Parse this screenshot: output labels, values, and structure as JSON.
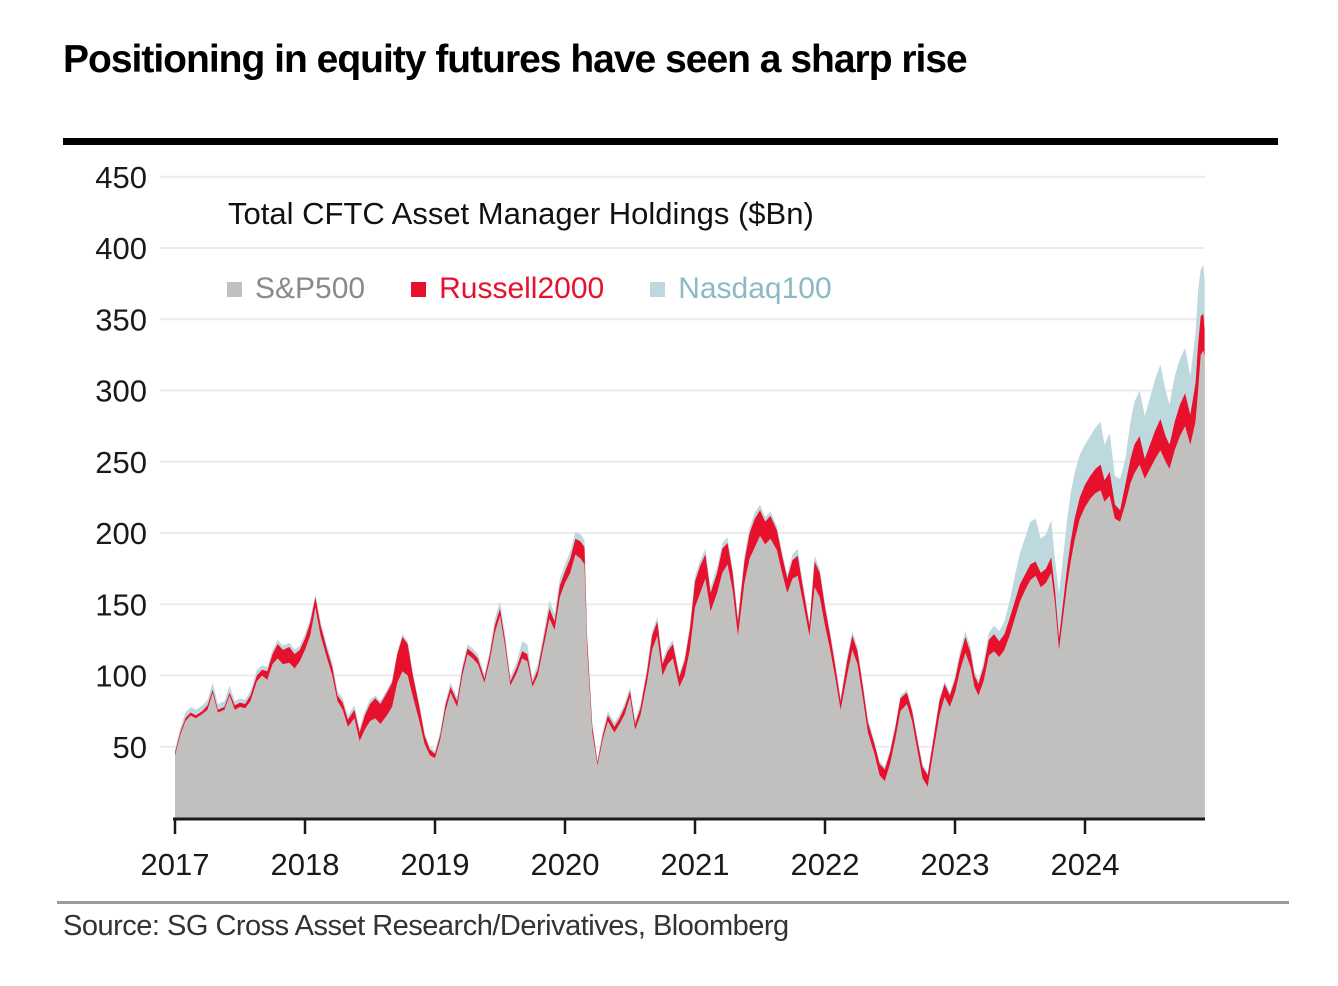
{
  "header": {
    "title": "Positioning in equity futures have seen a sharp rise"
  },
  "chart": {
    "subtitle": "Total CFTC Asset Manager Holdings ($Bn)",
    "legend": [
      {
        "label": "S&P500",
        "swatch_color": "#c2bfbf",
        "text_color": "#8a8a8a"
      },
      {
        "label": "Russell2000",
        "swatch_color": "#e8112d",
        "text_color": "#e8112d"
      },
      {
        "label": "Nasdaq100",
        "swatch_color": "#bed9de",
        "text_color": "#8db9c5"
      }
    ]
  },
  "footer": {
    "source": "Source: SG Cross Asset Research/Derivatives, Bloomberg"
  },
  "colors": {
    "sp500_area": "#c2bfbf",
    "russell2000_area": "#e8112d",
    "nasdaq100_area": "#bed9de",
    "gridline": "#ebebeb",
    "axis": "#1a1a1a",
    "tick_label": "#1a1a1a"
  },
  "chart_data": {
    "type": "area",
    "stacked": true,
    "title": "Total CFTC Asset Manager Holdings ($Bn)",
    "series_names": [
      "S&P500",
      "Russell2000",
      "Nasdaq100"
    ],
    "x_unit": "decimal_year",
    "x_range": [
      2017.0,
      2024.92
    ],
    "ylim": [
      0,
      450
    ],
    "y_ticks": [
      450,
      400,
      350,
      300,
      250,
      200,
      150,
      100,
      50
    ],
    "x_ticks": [
      "2017",
      "2018",
      "2019",
      "2020",
      "2021",
      "2022",
      "2023",
      "2024"
    ],
    "grid": "horizontal",
    "legend_position": "top-left-inside",
    "columns": [
      "year",
      "sp500",
      "russell2000_band",
      "nasdaq100_band"
    ],
    "points": [
      [
        2017.0,
        44,
        2,
        2
      ],
      [
        2017.04,
        58,
        2,
        3
      ],
      [
        2017.08,
        68,
        2,
        4
      ],
      [
        2017.12,
        72,
        2,
        4
      ],
      [
        2017.16,
        70,
        2,
        4
      ],
      [
        2017.21,
        73,
        2,
        4
      ],
      [
        2017.25,
        76,
        3,
        4
      ],
      [
        2017.29,
        88,
        2,
        5
      ],
      [
        2017.33,
        74,
        2,
        4
      ],
      [
        2017.38,
        76,
        2,
        4
      ],
      [
        2017.42,
        86,
        2,
        5
      ],
      [
        2017.46,
        76,
        3,
        3
      ],
      [
        2017.5,
        78,
        3,
        3
      ],
      [
        2017.54,
        77,
        3,
        3
      ],
      [
        2017.58,
        82,
        4,
        3
      ],
      [
        2017.63,
        96,
        4,
        4
      ],
      [
        2017.67,
        100,
        4,
        3
      ],
      [
        2017.71,
        97,
        6,
        3
      ],
      [
        2017.75,
        108,
        7,
        3
      ],
      [
        2017.79,
        112,
        10,
        3
      ],
      [
        2017.83,
        108,
        10,
        3
      ],
      [
        2017.88,
        109,
        11,
        3
      ],
      [
        2017.92,
        105,
        10,
        3
      ],
      [
        2017.96,
        110,
        8,
        3
      ],
      [
        2018.0,
        118,
        8,
        3
      ],
      [
        2018.04,
        128,
        9,
        3
      ],
      [
        2018.08,
        148,
        7,
        2
      ],
      [
        2018.12,
        128,
        7,
        3
      ],
      [
        2018.17,
        112,
        6,
        3
      ],
      [
        2018.21,
        100,
        6,
        3
      ],
      [
        2018.25,
        82,
        4,
        3
      ],
      [
        2018.29,
        76,
        5,
        3
      ],
      [
        2018.33,
        64,
        5,
        3
      ],
      [
        2018.38,
        70,
        6,
        3
      ],
      [
        2018.42,
        54,
        6,
        3
      ],
      [
        2018.46,
        62,
        10,
        3
      ],
      [
        2018.5,
        68,
        12,
        3
      ],
      [
        2018.54,
        70,
        14,
        2
      ],
      [
        2018.58,
        66,
        14,
        2
      ],
      [
        2018.63,
        72,
        16,
        2
      ],
      [
        2018.67,
        78,
        17,
        2
      ],
      [
        2018.71,
        95,
        20,
        2
      ],
      [
        2018.75,
        103,
        24,
        2
      ],
      [
        2018.79,
        100,
        22,
        2
      ],
      [
        2018.83,
        85,
        15,
        2
      ],
      [
        2018.88,
        68,
        10,
        2
      ],
      [
        2018.92,
        52,
        6,
        2
      ],
      [
        2018.96,
        44,
        4,
        2
      ],
      [
        2019.0,
        42,
        3,
        2
      ],
      [
        2019.04,
        55,
        3,
        3
      ],
      [
        2019.08,
        75,
        4,
        3
      ],
      [
        2019.12,
        88,
        4,
        3
      ],
      [
        2019.17,
        78,
        4,
        3
      ],
      [
        2019.21,
        100,
        4,
        3
      ],
      [
        2019.25,
        115,
        4,
        3
      ],
      [
        2019.29,
        112,
        4,
        3
      ],
      [
        2019.33,
        108,
        4,
        3
      ],
      [
        2019.38,
        95,
        3,
        3
      ],
      [
        2019.42,
        110,
        4,
        3
      ],
      [
        2019.46,
        130,
        5,
        5
      ],
      [
        2019.5,
        142,
        5,
        5
      ],
      [
        2019.54,
        120,
        4,
        4
      ],
      [
        2019.58,
        93,
        3,
        3
      ],
      [
        2019.63,
        102,
        4,
        4
      ],
      [
        2019.67,
        112,
        5,
        7
      ],
      [
        2019.71,
        110,
        5,
        7
      ],
      [
        2019.75,
        92,
        3,
        3
      ],
      [
        2019.79,
        100,
        4,
        4
      ],
      [
        2019.83,
        118,
        5,
        4
      ],
      [
        2019.88,
        140,
        7,
        6
      ],
      [
        2019.92,
        132,
        6,
        5
      ],
      [
        2019.96,
        155,
        8,
        5
      ],
      [
        2020.0,
        165,
        8,
        5
      ],
      [
        2020.04,
        172,
        10,
        5
      ],
      [
        2020.08,
        185,
        11,
        5
      ],
      [
        2020.12,
        182,
        12,
        5
      ],
      [
        2020.15,
        178,
        12,
        5
      ],
      [
        2020.17,
        120,
        6,
        4
      ],
      [
        2020.21,
        60,
        4,
        3
      ],
      [
        2020.25,
        37,
        2,
        2
      ],
      [
        2020.29,
        55,
        3,
        3
      ],
      [
        2020.33,
        68,
        4,
        3
      ],
      [
        2020.38,
        60,
        4,
        3
      ],
      [
        2020.42,
        66,
        4,
        3
      ],
      [
        2020.46,
        73,
        5,
        3
      ],
      [
        2020.5,
        85,
        4,
        3
      ],
      [
        2020.54,
        62,
        4,
        3
      ],
      [
        2020.58,
        72,
        5,
        3
      ],
      [
        2020.63,
        95,
        7,
        3
      ],
      [
        2020.67,
        118,
        10,
        3
      ],
      [
        2020.71,
        128,
        10,
        3
      ],
      [
        2020.75,
        100,
        8,
        3
      ],
      [
        2020.79,
        108,
        9,
        3
      ],
      [
        2020.83,
        112,
        10,
        3
      ],
      [
        2020.88,
        92,
        7,
        3
      ],
      [
        2020.92,
        100,
        10,
        3
      ],
      [
        2020.96,
        118,
        14,
        3
      ],
      [
        2021.0,
        148,
        18,
        4
      ],
      [
        2021.04,
        158,
        19,
        4
      ],
      [
        2021.08,
        168,
        17,
        4
      ],
      [
        2021.12,
        145,
        13,
        4
      ],
      [
        2021.17,
        158,
        14,
        4
      ],
      [
        2021.21,
        172,
        17,
        4
      ],
      [
        2021.25,
        178,
        15,
        4
      ],
      [
        2021.29,
        160,
        12,
        3
      ],
      [
        2021.33,
        128,
        10,
        3
      ],
      [
        2021.38,
        165,
        15,
        4
      ],
      [
        2021.42,
        182,
        18,
        4
      ],
      [
        2021.46,
        190,
        20,
        4
      ],
      [
        2021.5,
        198,
        18,
        4
      ],
      [
        2021.54,
        192,
        16,
        3
      ],
      [
        2021.58,
        196,
        16,
        3
      ],
      [
        2021.63,
        188,
        14,
        3
      ],
      [
        2021.67,
        172,
        12,
        3
      ],
      [
        2021.71,
        158,
        10,
        3
      ],
      [
        2021.75,
        168,
        13,
        4
      ],
      [
        2021.79,
        170,
        14,
        5
      ],
      [
        2021.83,
        152,
        10,
        3
      ],
      [
        2021.88,
        128,
        7,
        3
      ],
      [
        2021.92,
        162,
        18,
        4
      ],
      [
        2021.96,
        155,
        17,
        3
      ],
      [
        2022.0,
        135,
        13,
        3
      ],
      [
        2022.04,
        118,
        10,
        3
      ],
      [
        2022.08,
        98,
        8,
        3
      ],
      [
        2022.12,
        76,
        6,
        3
      ],
      [
        2022.17,
        100,
        10,
        3
      ],
      [
        2022.21,
        118,
        10,
        3
      ],
      [
        2022.25,
        108,
        9,
        3
      ],
      [
        2022.29,
        85,
        8,
        3
      ],
      [
        2022.33,
        60,
        7,
        3
      ],
      [
        2022.38,
        45,
        7,
        2
      ],
      [
        2022.42,
        30,
        8,
        2
      ],
      [
        2022.46,
        26,
        8,
        2
      ],
      [
        2022.5,
        38,
        8,
        2
      ],
      [
        2022.54,
        55,
        8,
        2
      ],
      [
        2022.58,
        75,
        9,
        2
      ],
      [
        2022.63,
        80,
        8,
        2
      ],
      [
        2022.67,
        68,
        7,
        2
      ],
      [
        2022.71,
        48,
        7,
        2
      ],
      [
        2022.75,
        28,
        8,
        2
      ],
      [
        2022.79,
        22,
        8,
        2
      ],
      [
        2022.83,
        45,
        8,
        2
      ],
      [
        2022.88,
        72,
        10,
        2
      ],
      [
        2022.92,
        85,
        9,
        2
      ],
      [
        2022.96,
        78,
        8,
        2
      ],
      [
        2023.0,
        88,
        9,
        3
      ],
      [
        2023.04,
        104,
        10,
        4
      ],
      [
        2023.08,
        116,
        11,
        4
      ],
      [
        2023.12,
        106,
        10,
        4
      ],
      [
        2023.15,
        92,
        8,
        3
      ],
      [
        2023.18,
        86,
        8,
        3
      ],
      [
        2023.22,
        96,
        10,
        4
      ],
      [
        2023.26,
        114,
        11,
        5
      ],
      [
        2023.3,
        117,
        12,
        6
      ],
      [
        2023.34,
        113,
        11,
        7
      ],
      [
        2023.38,
        118,
        11,
        9
      ],
      [
        2023.42,
        128,
        12,
        12
      ],
      [
        2023.46,
        140,
        12,
        18
      ],
      [
        2023.5,
        152,
        12,
        22
      ],
      [
        2023.54,
        160,
        11,
        26
      ],
      [
        2023.58,
        167,
        11,
        30
      ],
      [
        2023.62,
        170,
        10,
        30
      ],
      [
        2023.66,
        162,
        10,
        24
      ],
      [
        2023.7,
        165,
        10,
        24
      ],
      [
        2023.74,
        172,
        11,
        26
      ],
      [
        2023.77,
        150,
        9,
        22
      ],
      [
        2023.8,
        118,
        8,
        32
      ],
      [
        2023.83,
        140,
        10,
        32
      ],
      [
        2023.86,
        162,
        12,
        34
      ],
      [
        2023.89,
        180,
        14,
        34
      ],
      [
        2023.92,
        195,
        15,
        32
      ],
      [
        2023.96,
        210,
        15,
        30
      ],
      [
        2024.0,
        218,
        16,
        28
      ],
      [
        2024.04,
        224,
        16,
        28
      ],
      [
        2024.08,
        228,
        17,
        29
      ],
      [
        2024.12,
        230,
        18,
        30
      ],
      [
        2024.15,
        222,
        15,
        25
      ],
      [
        2024.19,
        226,
        17,
        27
      ],
      [
        2024.23,
        210,
        10,
        20
      ],
      [
        2024.27,
        208,
        8,
        22
      ],
      [
        2024.31,
        220,
        14,
        18
      ],
      [
        2024.35,
        235,
        17,
        26
      ],
      [
        2024.38,
        242,
        20,
        30
      ],
      [
        2024.42,
        248,
        20,
        32
      ],
      [
        2024.46,
        238,
        14,
        30
      ],
      [
        2024.5,
        245,
        17,
        33
      ],
      [
        2024.54,
        252,
        20,
        36
      ],
      [
        2024.58,
        258,
        22,
        38
      ],
      [
        2024.62,
        250,
        18,
        32
      ],
      [
        2024.65,
        245,
        17,
        28
      ],
      [
        2024.69,
        258,
        20,
        32
      ],
      [
        2024.73,
        268,
        22,
        32
      ],
      [
        2024.77,
        275,
        23,
        32
      ],
      [
        2024.81,
        262,
        21,
        27
      ],
      [
        2024.85,
        278,
        27,
        35
      ],
      [
        2024.87,
        300,
        32,
        38
      ],
      [
        2024.89,
        325,
        27,
        33
      ],
      [
        2024.91,
        328,
        26,
        34
      ],
      [
        2024.92,
        324,
        19,
        35
      ]
    ]
  }
}
